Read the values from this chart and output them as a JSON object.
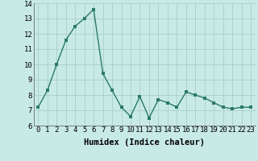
{
  "x": [
    0,
    1,
    2,
    3,
    4,
    5,
    6,
    7,
    8,
    9,
    10,
    11,
    12,
    13,
    14,
    15,
    16,
    17,
    18,
    19,
    20,
    21,
    22,
    23
  ],
  "y": [
    7.2,
    8.3,
    10.0,
    11.6,
    12.5,
    13.0,
    13.6,
    9.4,
    8.3,
    7.2,
    6.6,
    7.9,
    6.5,
    7.7,
    7.5,
    7.2,
    8.2,
    8.0,
    7.8,
    7.5,
    7.2,
    7.1,
    7.2,
    7.2
  ],
  "line_color": "#2a7a68",
  "marker_color": "#2a7a68",
  "bg_color": "#c8eae6",
  "grid_color": "#a8cec8",
  "xlabel": "Humidex (Indice chaleur)",
  "ylim": [
    6,
    14
  ],
  "xlim": [
    -0.5,
    23.5
  ],
  "yticks": [
    6,
    7,
    8,
    9,
    10,
    11,
    12,
    13,
    14
  ],
  "xticks": [
    0,
    1,
    2,
    3,
    4,
    5,
    6,
    7,
    8,
    9,
    10,
    11,
    12,
    13,
    14,
    15,
    16,
    17,
    18,
    19,
    20,
    21,
    22,
    23
  ],
  "xlabel_fontsize": 7.5,
  "tick_fontsize": 6.5,
  "line_width": 1.0,
  "marker_size": 2.5
}
